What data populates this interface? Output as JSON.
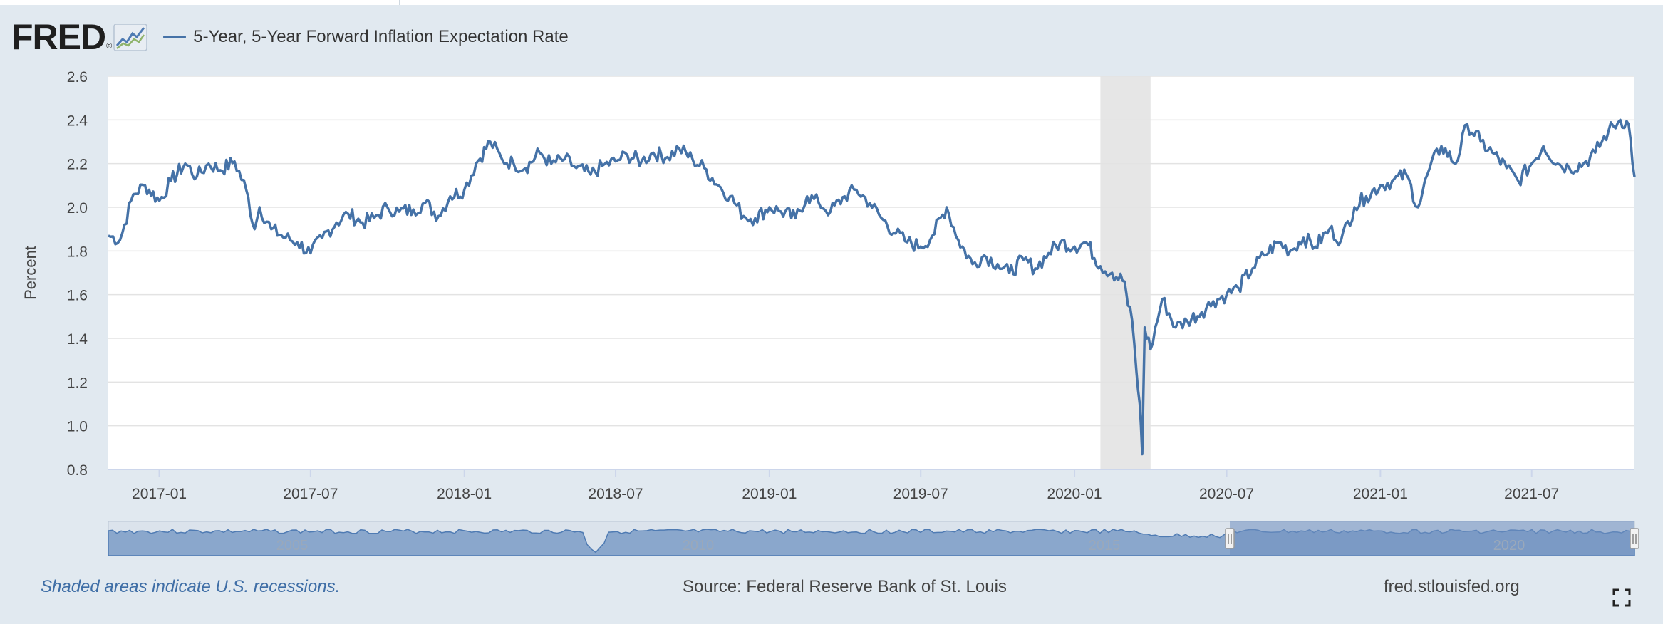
{
  "header": {
    "logo_text": "FRED",
    "logo_mark": "®",
    "logo_icon": "line-graph-icon",
    "series_label": "5-Year, 5-Year Forward Inflation Expectation Rate"
  },
  "colors": {
    "series": "#4572a7",
    "recession": "#e6e6e6",
    "background": "#e1e9f0",
    "navigator_fill": "#8aa7cc",
    "navigator_selected": "#6f8fbf"
  },
  "chart_data": {
    "type": "line",
    "ylabel": "Percent",
    "ylim": [
      0.8,
      2.6
    ],
    "y_ticks": [
      "0.8",
      "1.0",
      "1.2",
      "1.4",
      "1.6",
      "1.8",
      "2.0",
      "2.2",
      "2.4",
      "2.6"
    ],
    "xlim": [
      "2016-11-01",
      "2021-11-01"
    ],
    "x_ticks": [
      {
        "label": "2017-01",
        "date": "2017-01-01"
      },
      {
        "label": "2017-07",
        "date": "2017-07-01"
      },
      {
        "label": "2018-01",
        "date": "2018-01-01"
      },
      {
        "label": "2018-07",
        "date": "2018-07-01"
      },
      {
        "label": "2019-01",
        "date": "2019-01-01"
      },
      {
        "label": "2019-07",
        "date": "2019-07-01"
      },
      {
        "label": "2020-01",
        "date": "2020-01-01"
      },
      {
        "label": "2020-07",
        "date": "2020-07-01"
      },
      {
        "label": "2021-01",
        "date": "2021-01-01"
      },
      {
        "label": "2021-07",
        "date": "2021-07-01"
      }
    ],
    "grid": true,
    "recession": {
      "start": "2020-02-01",
      "end": "2020-04-01"
    },
    "series": [
      {
        "name": "5-Year, 5-Year Forward Inflation Expectation Rate",
        "x": [
          "2016-11-01",
          "2016-11-15",
          "2016-12-01",
          "2016-12-15",
          "2017-01-01",
          "2017-01-15",
          "2017-02-01",
          "2017-02-15",
          "2017-03-01",
          "2017-03-15",
          "2017-04-01",
          "2017-04-15",
          "2017-04-25",
          "2017-05-01",
          "2017-05-15",
          "2017-06-01",
          "2017-06-15",
          "2017-07-01",
          "2017-07-15",
          "2017-08-01",
          "2017-08-15",
          "2017-09-01",
          "2017-09-15",
          "2017-10-01",
          "2017-10-15",
          "2017-11-01",
          "2017-11-15",
          "2017-12-01",
          "2017-12-15",
          "2018-01-01",
          "2018-01-15",
          "2018-02-01",
          "2018-02-15",
          "2018-03-01",
          "2018-03-15",
          "2018-04-01",
          "2018-04-15",
          "2018-05-01",
          "2018-05-15",
          "2018-06-01",
          "2018-06-15",
          "2018-07-01",
          "2018-07-15",
          "2018-08-01",
          "2018-08-15",
          "2018-09-01",
          "2018-09-15",
          "2018-10-01",
          "2018-10-15",
          "2018-11-01",
          "2018-11-15",
          "2018-12-01",
          "2018-12-15",
          "2019-01-01",
          "2019-01-15",
          "2019-02-01",
          "2019-02-15",
          "2019-03-01",
          "2019-03-15",
          "2019-04-01",
          "2019-04-15",
          "2019-05-01",
          "2019-05-15",
          "2019-06-01",
          "2019-06-15",
          "2019-07-01",
          "2019-07-15",
          "2019-08-01",
          "2019-08-15",
          "2019-09-01",
          "2019-09-15",
          "2019-10-01",
          "2019-10-15",
          "2019-11-01",
          "2019-11-15",
          "2019-12-01",
          "2019-12-15",
          "2020-01-01",
          "2020-01-15",
          "2020-02-01",
          "2020-02-15",
          "2020-03-01",
          "2020-03-05",
          "2020-03-10",
          "2020-03-15",
          "2020-03-19",
          "2020-03-22",
          "2020-03-25",
          "2020-04-01",
          "2020-04-15",
          "2020-05-01",
          "2020-05-15",
          "2020-06-01",
          "2020-06-15",
          "2020-07-01",
          "2020-07-15",
          "2020-08-01",
          "2020-08-15",
          "2020-09-01",
          "2020-09-15",
          "2020-10-01",
          "2020-10-15",
          "2020-11-01",
          "2020-11-15",
          "2020-12-01",
          "2020-12-15",
          "2021-01-01",
          "2021-01-15",
          "2021-02-01",
          "2021-02-15",
          "2021-03-01",
          "2021-03-15",
          "2021-04-01",
          "2021-04-15",
          "2021-05-01",
          "2021-05-15",
          "2021-06-01",
          "2021-06-15",
          "2021-07-01",
          "2021-07-15",
          "2021-08-01",
          "2021-08-15",
          "2021-09-01",
          "2021-09-15",
          "2021-10-01",
          "2021-10-15",
          "2021-10-25",
          "2021-11-01"
        ],
        "y": [
          1.87,
          1.85,
          2.06,
          2.1,
          2.03,
          2.12,
          2.2,
          2.14,
          2.2,
          2.17,
          2.21,
          2.08,
          1.9,
          2.0,
          1.9,
          1.86,
          1.84,
          1.79,
          1.86,
          1.93,
          1.97,
          1.93,
          1.95,
          2.0,
          1.98,
          1.99,
          2.02,
          1.96,
          2.05,
          2.08,
          2.2,
          2.3,
          2.22,
          2.2,
          2.18,
          2.25,
          2.2,
          2.22,
          2.18,
          2.15,
          2.19,
          2.21,
          2.24,
          2.21,
          2.25,
          2.23,
          2.27,
          2.22,
          2.18,
          2.1,
          2.05,
          1.96,
          1.95,
          2.0,
          1.98,
          1.95,
          2.05,
          2.02,
          1.98,
          2.05,
          2.08,
          2.02,
          1.95,
          1.88,
          1.84,
          1.82,
          1.87,
          2.0,
          1.85,
          1.74,
          1.78,
          1.74,
          1.7,
          1.76,
          1.72,
          1.79,
          1.84,
          1.82,
          1.84,
          1.73,
          1.7,
          1.66,
          1.55,
          1.48,
          1.25,
          1.1,
          0.87,
          1.45,
          1.35,
          1.58,
          1.45,
          1.48,
          1.52,
          1.57,
          1.6,
          1.63,
          1.72,
          1.78,
          1.84,
          1.8,
          1.86,
          1.82,
          1.9,
          1.85,
          2.0,
          2.05,
          2.1,
          2.12,
          2.15,
          2.0,
          2.18,
          2.28,
          2.2,
          2.38,
          2.3,
          2.25,
          2.18,
          2.12,
          2.2,
          2.28,
          2.2,
          2.18,
          2.2,
          2.25,
          2.35,
          2.4,
          2.38,
          2.14
        ]
      }
    ]
  },
  "navigator": {
    "labels": [
      "2005",
      "2010",
      "2015",
      "2020"
    ]
  },
  "footer": {
    "recession_note": "Shaded areas indicate U.S. recessions.",
    "source": "Source: Federal Reserve Bank of St. Louis",
    "site": "fred.stlouisfed.org",
    "fullscreen_icon": "fullscreen-icon"
  }
}
